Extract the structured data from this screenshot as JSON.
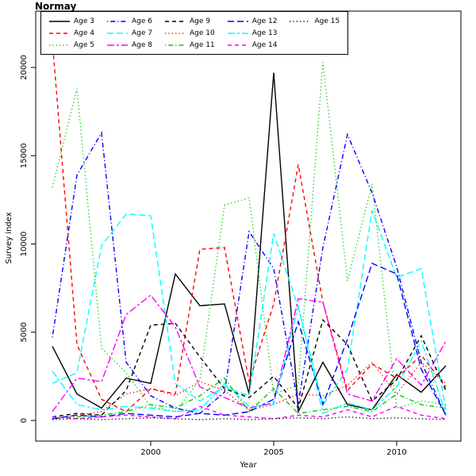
{
  "page": {
    "title": "Normay"
  },
  "chart_data": {
    "type": "line",
    "title": "Normay",
    "xlabel": "Year",
    "ylabel": "Survey index",
    "xlim": [
      1996,
      2012
    ],
    "ylim": [
      0,
      21500
    ],
    "xticks": [
      2000,
      2005,
      2010
    ],
    "yticks": [
      0,
      5000,
      10000,
      15000,
      20000
    ],
    "grid": false,
    "legend_position": "top-left-inside",
    "x": [
      1996,
      1997,
      1998,
      1999,
      2000,
      2001,
      2002,
      2003,
      2004,
      2005,
      2006,
      2007,
      2008,
      2009,
      2010,
      2011,
      2012
    ],
    "series": [
      {
        "name": "Age 3",
        "color": "#000000",
        "linetype": "solid",
        "dash": "",
        "values": [
          4200,
          1500,
          700,
          2400,
          2100,
          8300,
          6500,
          6600,
          1500,
          19700,
          500,
          3300,
          900,
          600,
          2600,
          1600,
          3100
        ]
      },
      {
        "name": "Age 4",
        "color": "#FF0000",
        "linetype": "dashed",
        "dash": "5,4",
        "values": [
          21500,
          4300,
          1200,
          500,
          1800,
          1500,
          9700,
          9800,
          2200,
          6600,
          14500,
          6700,
          1700,
          3200,
          2400,
          3700,
          1900
        ]
      },
      {
        "name": "Age 5",
        "color": "#00CD00",
        "linetype": "dotted",
        "dash": "1.2,3.2",
        "values": [
          13200,
          18800,
          4100,
          2700,
          800,
          500,
          2300,
          12200,
          12600,
          1500,
          2000,
          20300,
          7900,
          13400,
          700,
          1100,
          900
        ]
      },
      {
        "name": "Age 6",
        "color": "#0000FF",
        "linetype": "dotdash",
        "dash": "1.2,3,6,3",
        "values": [
          4700,
          13900,
          16300,
          3300,
          1400,
          700,
          400,
          1600,
          10700,
          8600,
          900,
          9800,
          16200,
          12900,
          8700,
          3300,
          300
        ]
      },
      {
        "name": "Age 7",
        "color": "#00FFFF",
        "linetype": "longdash",
        "dash": "8,4",
        "values": [
          2100,
          2700,
          9900,
          11700,
          11600,
          2100,
          1100,
          1900,
          1400,
          10600,
          6400,
          900,
          2900,
          11900,
          8100,
          8600,
          600
        ]
      },
      {
        "name": "Age 8",
        "color": "#FF00FF",
        "linetype": "twodash",
        "dash": "9,3,3,3",
        "values": [
          500,
          2400,
          2200,
          6000,
          7100,
          5300,
          1900,
          1300,
          700,
          1000,
          6900,
          6700,
          1500,
          1100,
          3500,
          2000,
          4500
        ]
      },
      {
        "name": "Age 9",
        "color": "#000000",
        "linetype": "dashed",
        "dash": "5,4",
        "values": [
          200,
          400,
          300,
          1700,
          5400,
          5500,
          3600,
          1800,
          1300,
          2500,
          700,
          5700,
          4300,
          1100,
          2300,
          4800,
          1700
        ]
      },
      {
        "name": "Age 10",
        "color": "#FF0000",
        "linetype": "dotted",
        "dash": "1.2,3.2",
        "values": [
          100,
          300,
          500,
          1500,
          1800,
          1400,
          2200,
          1700,
          600,
          900,
          1500,
          1400,
          2000,
          3300,
          1500,
          3300,
          2100
        ]
      },
      {
        "name": "Age 11",
        "color": "#00CD00",
        "linetype": "dotdash",
        "dash": "1.2,3,6,3",
        "values": [
          100,
          200,
          300,
          500,
          900,
          700,
          1400,
          2400,
          500,
          1800,
          400,
          600,
          800,
          500,
          1500,
          900,
          700
        ]
      },
      {
        "name": "Age 12",
        "color": "#0000FF",
        "linetype": "longdash",
        "dash": "8,4",
        "values": [
          100,
          300,
          200,
          400,
          300,
          200,
          400,
          300,
          500,
          1200,
          5600,
          900,
          4600,
          8900,
          8300,
          2900,
          300
        ]
      },
      {
        "name": "Age 13",
        "color": "#00FFFF",
        "linetype": "twodash",
        "dash": "9,3,3,3",
        "values": [
          2800,
          900,
          600,
          800,
          700,
          500,
          600,
          2100,
          800,
          900,
          6500,
          400,
          1000,
          600,
          1900,
          4500,
          400
        ]
      },
      {
        "name": "Age 14",
        "color": "#FF00FF",
        "linetype": "dashed",
        "dash": "5,4",
        "values": [
          200,
          100,
          200,
          300,
          200,
          100,
          800,
          300,
          200,
          100,
          300,
          200,
          600,
          200,
          800,
          300,
          100
        ]
      },
      {
        "name": "Age 15",
        "color": "#000000",
        "linetype": "dotted",
        "dash": "1.2,3.2",
        "values": [
          50,
          100,
          50,
          100,
          150,
          100,
          50,
          100,
          50,
          100,
          150,
          100,
          200,
          100,
          150,
          100,
          50
        ]
      }
    ]
  }
}
